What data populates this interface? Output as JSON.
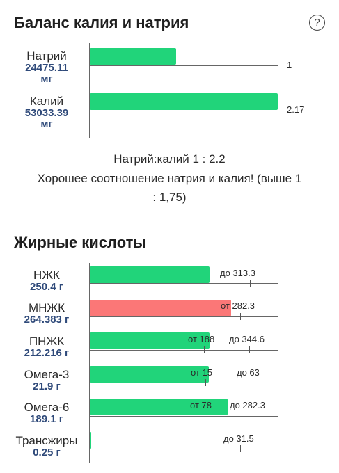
{
  "potassium_sodium": {
    "title": "Баланс калия и натрия",
    "help_icon": "?",
    "rows": [
      {
        "name": "Натрий",
        "amount": "24475.11",
        "unit": "мг",
        "value_label": "1",
        "ratio": 1
      },
      {
        "name": "Калий",
        "amount": "53033.39",
        "unit": "мг",
        "value_label": "2.17",
        "ratio": 2.17
      }
    ],
    "ratio_line": "Натрий:калий 1 : 2.2",
    "verdict_line1": "Хорошее соотношение натрия и калия! (выше 1",
    "verdict_line2": ": 1,75)"
  },
  "fatty_acids": {
    "title": "Жирные кислоты",
    "rows": [
      {
        "name": "НЖК",
        "amount": "250.4 г",
        "min_label": "",
        "max_label": "до 313.3",
        "status": "ok"
      },
      {
        "name": "МНЖК",
        "amount": "264.383 г",
        "min_label": "от 282.3",
        "max_label": "",
        "status": "low"
      },
      {
        "name": "ПНЖК",
        "amount": "212.216 г",
        "min_label": "от 188",
        "max_label": "до 344.6",
        "status": "ok"
      },
      {
        "name": "Омега-3",
        "amount": "21.9 г",
        "min_label": "от 15",
        "max_label": "до 63",
        "status": "ok"
      },
      {
        "name": "Омега-6",
        "amount": "189.1 г",
        "min_label": "от 78",
        "max_label": "до 282.3",
        "status": "ok"
      },
      {
        "name": "Трансжиры",
        "amount": "0.25 г",
        "min_label": "",
        "max_label": "до 31.5",
        "status": "ok"
      }
    ]
  },
  "colors": {
    "ok": "#21d47a",
    "low": "#fb7777",
    "amount_text": "#2f4a7a"
  }
}
